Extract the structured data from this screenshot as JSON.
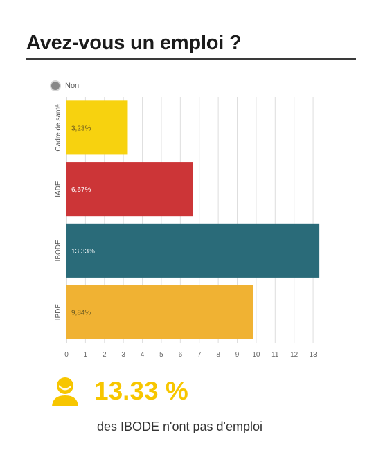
{
  "page": {
    "title": "Avez-vous un emploi ?"
  },
  "legend": {
    "label": "Non",
    "color": "#888888"
  },
  "chart_data": {
    "type": "bar",
    "orientation": "horizontal",
    "title": "",
    "xlabel": "",
    "ylabel": "",
    "categories": [
      "Cadre de santé",
      "IADE",
      "IBODE",
      "IPDE"
    ],
    "series": [
      {
        "name": "Non",
        "values": [
          3.23,
          6.67,
          13.33,
          9.84
        ],
        "value_labels": [
          "3,23%",
          "6,67%",
          "13,33%",
          "9,84%"
        ],
        "colors": [
          "#f7d20f",
          "#cc3537",
          "#2a6b79",
          "#f0b233"
        ]
      }
    ],
    "xlim": [
      0,
      13.8
    ],
    "xticks": [
      0,
      1,
      2,
      3,
      4,
      5,
      6,
      7,
      8,
      9,
      10,
      11,
      12,
      13
    ],
    "grid": true,
    "legend_position": "top-left"
  },
  "stat": {
    "value": "13.33 %",
    "caption": "des IBODE n'ont pas d'emploi",
    "icon": "person-icon",
    "color": "#f7c600"
  }
}
